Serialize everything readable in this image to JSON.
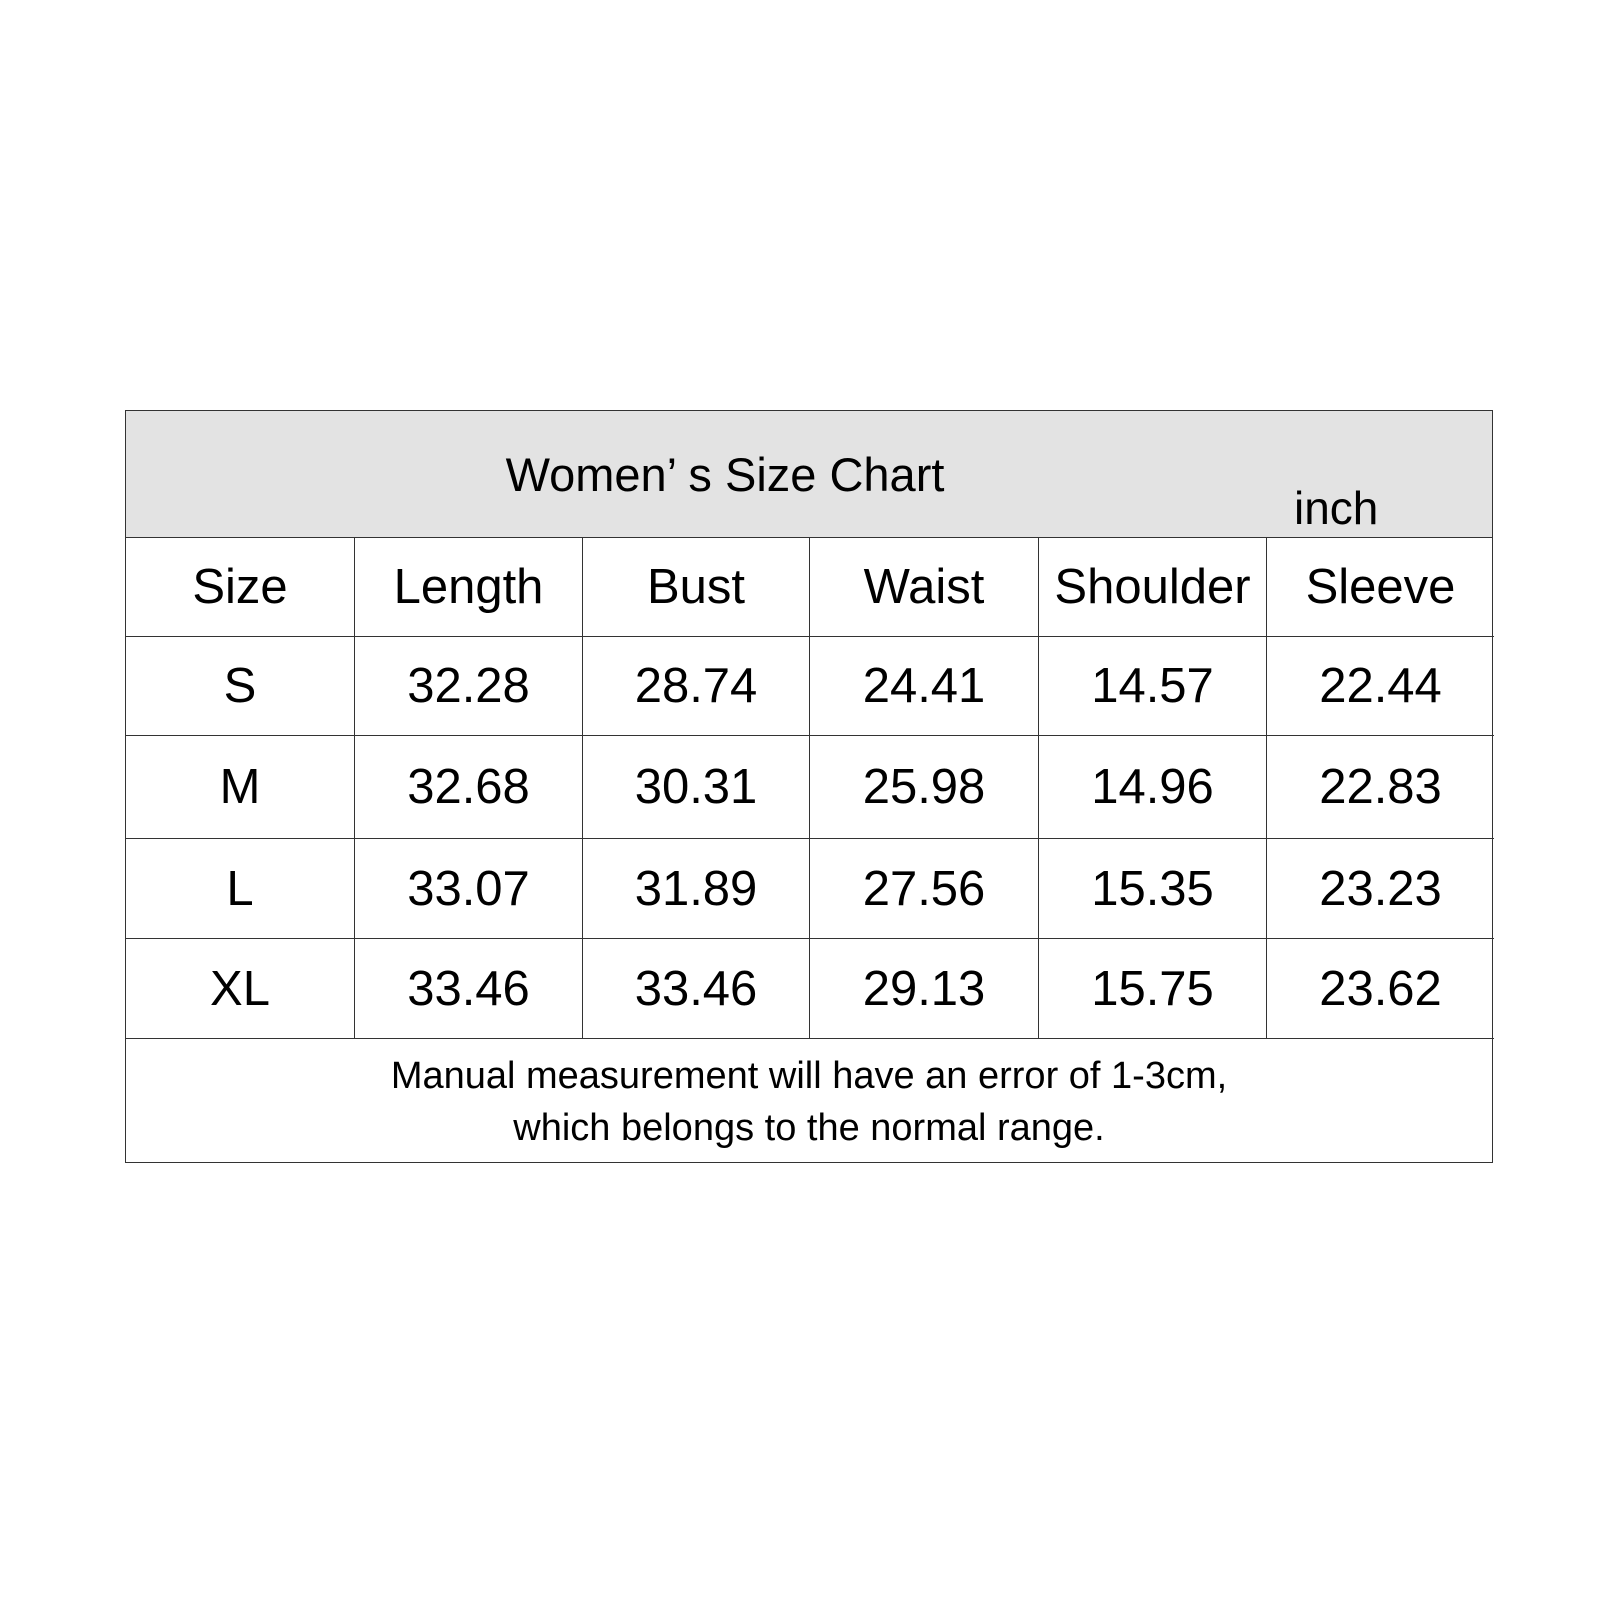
{
  "title": "Women’ s Size Chart",
  "unit": "inch",
  "headers": [
    "Size",
    "Length",
    "Bust",
    "Waist",
    "Shoulder",
    "Sleeve"
  ],
  "rows": [
    [
      "S",
      "32.28",
      "28.74",
      "24.41",
      "14.57",
      "22.44"
    ],
    [
      "M",
      "32.68",
      "30.31",
      "25.98",
      "14.96",
      "22.83"
    ],
    [
      "L",
      "33.07",
      "31.89",
      "27.56",
      "15.35",
      "23.23"
    ],
    [
      "XL",
      "33.46",
      "33.46",
      "29.13",
      "15.75",
      "23.62"
    ]
  ],
  "note": [
    "Manual measurement will have an error of 1-3cm,",
    "which belongs to the normal range."
  ],
  "colors": {
    "header_bg": "#e3e3e3",
    "border": "#333333"
  }
}
